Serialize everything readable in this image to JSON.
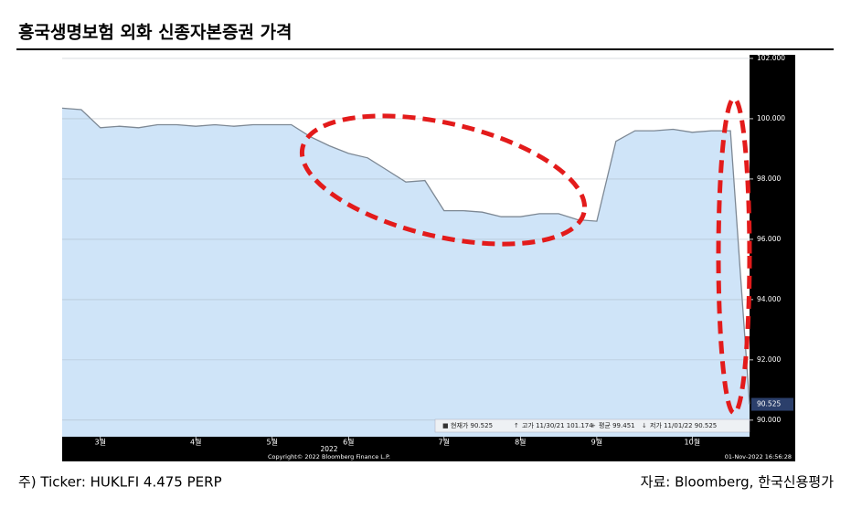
{
  "header": {
    "title": "흥국생명보험 외화 신종자본증권 가격"
  },
  "chart_data": {
    "type": "area",
    "categories": [
      null,
      null,
      "3월",
      null,
      null,
      null,
      null,
      "4월",
      null,
      null,
      null,
      "5월",
      null,
      null,
      null,
      "6월",
      null,
      null,
      null,
      null,
      "7월",
      null,
      null,
      null,
      "8월",
      null,
      null,
      null,
      "9월",
      null,
      null,
      null,
      null,
      "10월",
      null,
      null,
      null
    ],
    "values": [
      100.35,
      100.3,
      99.7,
      99.75,
      99.7,
      99.8,
      99.8,
      99.75,
      99.8,
      99.75,
      99.8,
      99.8,
      99.8,
      99.4,
      99.1,
      98.85,
      98.7,
      98.3,
      97.9,
      97.95,
      96.95,
      96.95,
      96.9,
      96.75,
      96.75,
      96.85,
      96.85,
      96.65,
      96.6,
      99.25,
      99.6,
      99.6,
      99.65,
      99.55,
      99.6,
      99.6,
      90.525
    ],
    "color": "#cfe4f8",
    "line_color": "#7d8894",
    "ylim": [
      89.45,
      102.12
    ],
    "yticks": [
      {
        "value": 90,
        "label": "90.000"
      },
      {
        "value": 92,
        "label": "92.000"
      },
      {
        "value": 94,
        "label": "94.000"
      },
      {
        "value": 96,
        "label": "96.000"
      },
      {
        "value": 98,
        "label": "98.000"
      },
      {
        "value": 100,
        "label": "100.000"
      },
      {
        "value": 102,
        "label": "102.000"
      }
    ],
    "grid": true,
    "x_year": "2022",
    "copyright": "Copyright© 2022 Bloomberg Finance L.P.",
    "timestamp": "01-Nov-2022 16:56:28",
    "legend_stats": [
      "현재가 90.525",
      "고가 11/30/21 101.174",
      "평균 99.451",
      "저가 11/01/22 90.525"
    ]
  },
  "footer": {
    "note": "주) Ticker: HUKLFI 4.475 PERP",
    "source": "자료: Bloomberg, 한국신용평가"
  }
}
